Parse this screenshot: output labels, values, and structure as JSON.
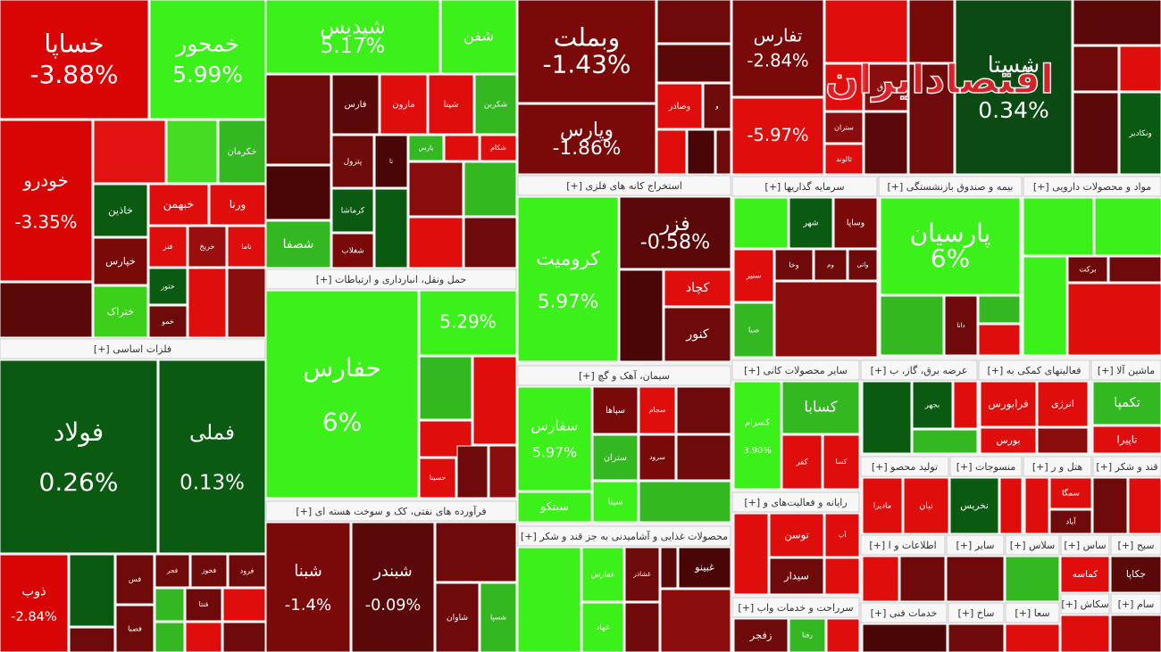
{
  "watermark": "اقتصادایران",
  "chart_data": {
    "type": "treemap",
    "groups": [
      {
        "labels": [
          "خساپا",
          "خمحور",
          "خودرو",
          null,
          "خکرمان",
          null,
          "خاذین",
          "خبهمن",
          "ورنا",
          "خپارس",
          "فنر",
          "خریخ",
          null,
          "ختراک",
          "ختور",
          "خمو",
          "ناما",
          null,
          null
        ],
        "values": [
          -3.88,
          5.99,
          -3.35,
          null,
          null,
          null,
          null,
          null,
          null,
          null,
          null,
          null,
          null,
          null,
          null,
          null,
          null,
          null,
          null
        ],
        "value_labels": [
          "-3.88%",
          "5.99%",
          "-3.35%",
          null,
          null,
          null,
          null,
          null,
          null,
          null,
          null,
          null,
          null,
          null,
          null,
          null,
          null,
          null,
          null
        ],
        "colors": [
          "#d90505",
          "#3cf01a",
          "#d90505",
          "#e01212",
          "#33b822",
          "#44dd22",
          "#0b5a12",
          "#e00d0d",
          "#e00d0d",
          "#7a0a0a",
          "#e00d0d",
          "#9a0e0e",
          "#5a0808",
          "#3cd01a",
          "#0b5a12",
          "#6e0a0a",
          "#e00d0d",
          "#e00d0d",
          "#8a0c0c"
        ]
      },
      {
        "labels": [
          "شپدیس",
          "شفن",
          null,
          null,
          "شصفا",
          "فارس",
          "مارون",
          "شپنا",
          "شکربن",
          "پترول",
          "تا",
          "پارس",
          null,
          "شکام",
          "کرماشا",
          "شغلاب",
          null,
          null,
          null,
          null,
          null
        ],
        "values": [
          5.17,
          null,
          null,
          null,
          null,
          null,
          null,
          null,
          null,
          null,
          null,
          null,
          null,
          null,
          null,
          null,
          null,
          null,
          null,
          null,
          null
        ],
        "value_labels": [
          "5.17%",
          null,
          null,
          null,
          null,
          null,
          null,
          null,
          null,
          null,
          null,
          null,
          null,
          null,
          null,
          null,
          null,
          null,
          null,
          null,
          null
        ],
        "colors": [
          "#3cf01a",
          "#3cf01a",
          "#6e0a0a",
          "#4a0606",
          "#33b822",
          "#5a0808",
          "#e00d0d",
          "#e00d0d",
          "#33b822",
          "#6e0a0a",
          "#4a0606",
          "#33b822",
          "#e00d0d",
          "#e00d0d",
          "#0b5a12",
          "#7a0a0a",
          "#0b5a12",
          "#8a0c0c",
          "#33b822",
          "#e00d0d",
          "#6e0a0a"
        ]
      },
      {
        "title": "حمل ونقل، انبارداری و ارتباطات [+]",
        "labels": [
          "حفارس",
          null,
          null,
          null,
          null,
          "حسینا",
          null,
          null
        ],
        "values": [
          6,
          5.29,
          null,
          null,
          null,
          null,
          null,
          null
        ],
        "value_labels": [
          "6%",
          "5.29%",
          null,
          null,
          null,
          null,
          null,
          null
        ],
        "colors": [
          "#3cf01a",
          "#3cf01a",
          "#33b822",
          "#e00d0d",
          "#e00d0d",
          "#e00d0d",
          "#6e0a0a",
          "#8a0c0c"
        ]
      },
      {
        "title": "فرآورده های نفتی، کک و سوخت هسته ای [+]",
        "labels": [
          "شبنا",
          "شبندر",
          null,
          "شاوان",
          "شسپا"
        ],
        "values": [
          -1.4,
          -0.09,
          null,
          null,
          null
        ],
        "value_labels": [
          "-1.4%",
          "-0.09%",
          null,
          null,
          null
        ],
        "colors": [
          "#7a0a0a",
          "#5a0808",
          "#6e0a0a",
          "#6e0a0a",
          "#33b822"
        ]
      },
      {
        "labels": [
          "وبملت",
          "وپارس",
          null,
          null,
          "وصادر",
          "و",
          null,
          null,
          null
        ],
        "values": [
          -1.43,
          -1.86,
          null,
          null,
          null,
          null,
          null,
          null,
          null
        ],
        "value_labels": [
          "-1.43%",
          "-1.86%",
          null,
          null,
          null,
          null,
          null,
          null,
          null
        ],
        "colors": [
          "#7a0a0a",
          "#7a0a0a",
          "#6e0a0a",
          "#5a0808",
          "#e00d0d",
          "#6e0a0a",
          "#e00d0d",
          "#4a0606",
          "#6e0a0a"
        ]
      },
      {
        "labels": [
          "تفارس",
          null,
          null,
          null,
          null,
          "شرق",
          "ستران",
          "ثالوند",
          null,
          null
        ],
        "values": [
          -2.84,
          null,
          -5.97,
          null,
          null,
          null,
          null,
          null,
          null,
          null
        ],
        "value_labels": [
          "-2.84%",
          null,
          "-5.97%",
          null,
          null,
          null,
          null,
          null,
          null,
          null
        ],
        "colors": [
          "#7a0a0a",
          "#e00d0d",
          "#e00d0d",
          "#7a0a0a",
          "#e00d0d",
          "#8a0c0c",
          "#8a0c0c",
          "#e00d0d",
          "#5a0808",
          "#6e0a0a"
        ]
      },
      {
        "labels": [
          "شستا",
          null,
          null,
          null,
          null,
          "ونکادیر"
        ],
        "values": [
          0.34,
          null,
          null,
          null,
          null,
          null
        ],
        "value_labels": [
          "0.34%",
          null,
          null,
          null,
          null,
          null
        ],
        "colors": [
          "#0b4a12",
          "#5a0808",
          "#6e0a0a",
          "#e00d0d",
          "#5a0808",
          "#0b5a12"
        ]
      },
      {
        "title": "استخراج کانه های فلزی [+]",
        "labels": [
          "کرومیت",
          "فزر",
          null,
          "کچاد",
          "کنور"
        ],
        "values": [
          5.97,
          -0.58,
          null,
          null,
          null
        ],
        "value_labels": [
          "5.97%",
          "-0.58%",
          null,
          null,
          null
        ],
        "colors": [
          "#3cf01a",
          "#5a0808",
          "#4a0606",
          "#e00d0d",
          "#6e0a0a"
        ]
      },
      {
        "title": "سیمان، آهک و گچ [+]",
        "labels": [
          "سفارس",
          "سپاها",
          "سجام",
          null,
          "ستران",
          "سرود",
          null,
          "سینا",
          "سیتکو",
          null
        ],
        "values": [
          5.97,
          null,
          null,
          null,
          null,
          null,
          null,
          null,
          null,
          null
        ],
        "value_labels": [
          "5.97%",
          null,
          null,
          null,
          null,
          null,
          null,
          null,
          null,
          null
        ],
        "colors": [
          "#3cf01a",
          "#7a0a0a",
          "#e00d0d",
          "#6e0a0a",
          "#33b822",
          "#7a0a0a",
          "#6e0a0a",
          "#3cf01a",
          "#3cf01a",
          "#33b822"
        ]
      },
      {
        "title": "محصولات غذایی و آشامیدنی به جز قند و شکر [+]",
        "labels": [
          null,
          "غفارس",
          "غشاذر",
          null,
          "غبینو",
          "غهاد",
          null,
          null
        ],
        "values": [
          null,
          null,
          null,
          null,
          null,
          null,
          null,
          null
        ],
        "value_labels": [
          null,
          null,
          null,
          null,
          null,
          null,
          null,
          null
        ],
        "colors": [
          "#3cf01a",
          "#3cf01a",
          "#6e0a0a",
          "#5a0808",
          "#4a0606",
          "#3cf01a",
          "#6e0a0a",
          "#8a0c0c"
        ]
      },
      {
        "title": "سرمایه گذاریها [+]",
        "labels": [
          null,
          "شهر",
          "وساپا",
          "وخا",
          "وم",
          "واتی",
          "سنیر",
          "صبا",
          null
        ],
        "values": [
          null,
          null,
          null,
          null,
          null,
          null,
          null,
          null,
          null
        ],
        "value_labels": [
          null,
          null,
          null,
          null,
          null,
          null,
          null,
          null,
          null
        ],
        "colors": [
          "#3cf01a",
          "#0b5a12",
          "#7a0a0a",
          "#6e0a0a",
          "#6e0a0a",
          "#6e0a0a",
          "#e00d0d",
          "#33b822",
          "#8a0c0c"
        ]
      },
      {
        "title": "بیمه و صندوق بازنشستگی [+]",
        "labels": [
          "پارسیان",
          null,
          "دانا",
          null,
          null
        ],
        "values": [
          6,
          null,
          null,
          null,
          null
        ],
        "value_labels": [
          "6%",
          null,
          null,
          null,
          null
        ],
        "colors": [
          "#3cf01a",
          "#33b822",
          "#6e0a0a",
          "#33b822",
          "#e00d0d"
        ]
      },
      {
        "title": "مواد و محصولات دارویی [+]",
        "labels": [
          null,
          null,
          "برکت",
          null,
          null,
          null
        ],
        "values": [
          null,
          null,
          null,
          null,
          null,
          null
        ],
        "value_labels": [
          null,
          null,
          null,
          null,
          null,
          null
        ],
        "colors": [
          "#3cf01a",
          "#3cf01a",
          "#6e0a0a",
          "#6e0a0a",
          "#3cf01a",
          "#e00d0d"
        ]
      },
      {
        "title": "سایر محصولات کانی [+]",
        "labels": [
          "کسرام",
          "کسابا",
          "کفر",
          "کسا"
        ],
        "values": [
          3.9,
          null,
          null,
          null
        ],
        "value_labels": [
          "3.90%",
          null,
          null,
          null
        ],
        "colors": [
          "#3cf01a",
          "#33b822",
          "#e00d0d",
          "#e00d0d"
        ]
      },
      {
        "title": "عرضه برق، گاز، ب [+]",
        "labels": [
          null,
          "بجهر",
          null,
          null
        ],
        "values": [
          null,
          null,
          null,
          null
        ],
        "value_labels": [
          null,
          null,
          null,
          null
        ],
        "colors": [
          "#0b5a12",
          "#0b5a12",
          "#e00d0d",
          "#33b822"
        ]
      },
      {
        "title": "فعالیتهای کمکی به [+]",
        "labels": [
          "فرابورس",
          "انرژی",
          "بورس",
          null
        ],
        "values": [
          null,
          null,
          null,
          null
        ],
        "value_labels": [
          null,
          null,
          null,
          null
        ],
        "colors": [
          "#e00d0d",
          "#e00d0d",
          "#e00d0d",
          "#8a0c0c"
        ]
      },
      {
        "title": "ماشین آلا [+]",
        "labels": [
          "تکمپا",
          "تاپیرا"
        ],
        "values": [
          null,
          null
        ],
        "value_labels": [
          null,
          null
        ],
        "colors": [
          "#33b822",
          "#e00d0d"
        ]
      },
      {
        "title": "تولید محصو [+]",
        "labels": [
          "مادیرا",
          "نیان"
        ],
        "values": [
          null,
          null
        ],
        "value_labels": [
          null,
          null
        ],
        "colors": [
          "#e00d0d",
          "#e00d0d"
        ]
      },
      {
        "title": "منسوجات [+]",
        "labels": [
          "نخریس",
          null
        ],
        "values": [
          null,
          null
        ],
        "value_labels": [
          null,
          null
        ],
        "colors": [
          "#0b5a12",
          "#e00d0d"
        ]
      },
      {
        "title": "هتل و ر [+]",
        "labels": [
          null,
          "سمگا",
          "آباد"
        ],
        "values": [
          null,
          null,
          null
        ],
        "value_labels": [
          null,
          null,
          null
        ],
        "colors": [
          "#e00d0d",
          "#e00d0d",
          "#6e0a0a"
        ]
      },
      {
        "title": "قند و شکر [+]",
        "labels": [
          null,
          null
        ],
        "values": [
          null,
          null
        ],
        "value_labels": [
          null,
          null
        ],
        "colors": [
          "#6e0a0a",
          "#e00d0d"
        ]
      },
      {
        "title": "رایانه و فعالیت‌های و [+]",
        "labels": [
          null,
          "توسن",
          "آپ",
          "سیدار",
          null
        ],
        "values": [
          null,
          null,
          null,
          null,
          null
        ],
        "value_labels": [
          null,
          null,
          null,
          null,
          null
        ],
        "colors": [
          "#e00d0d",
          "#e00d0d",
          "#e00d0d",
          "#6e0a0a",
          "#e00d0d"
        ]
      },
      {
        "title": "اطلاعات و ا [+]",
        "labels": [
          null,
          null
        ],
        "values": [
          null,
          null
        ],
        "value_labels": [
          null,
          null
        ],
        "colors": [
          "#e00d0d",
          "#6e0a0a"
        ]
      },
      {
        "title": "سایر [+]",
        "labels": [
          null
        ],
        "values": [
          null
        ],
        "value_labels": [
          null
        ],
        "colors": [
          "#6e0a0a"
        ]
      },
      {
        "title": "سلاس [+]",
        "labels": [
          null
        ],
        "values": [
          null
        ],
        "value_labels": [
          null
        ],
        "colors": [
          "#33b822"
        ]
      },
      {
        "title": "ساس [+]",
        "labels": [
          "کماسه"
        ],
        "values": [
          null
        ],
        "value_labels": [
          null
        ],
        "colors": [
          "#e00d0d"
        ]
      },
      {
        "title": "سیح [+]",
        "labels": [
          "جکاپا"
        ],
        "values": [
          null
        ],
        "value_labels": [
          null
        ],
        "colors": [
          "#5a0808"
        ]
      },
      {
        "title": "سرراحت و خدمات واب [+]",
        "labels": [
          "زفجر",
          "رفتا",
          null
        ],
        "values": [
          null,
          null,
          null
        ],
        "value_labels": [
          null,
          null,
          null
        ],
        "colors": [
          "#6e0a0a",
          "#33b822",
          "#e00d0d"
        ]
      },
      {
        "title": "خدمات فنی [+]",
        "labels": [
          null
        ],
        "values": [
          null
        ],
        "value_labels": [
          null
        ],
        "colors": [
          "#4a0606"
        ]
      },
      {
        "title": "ساخ [+]",
        "labels": [
          null
        ],
        "values": [
          null
        ],
        "value_labels": [
          null
        ],
        "colors": [
          "#6e0a0a"
        ]
      },
      {
        "title": "سعا [+]",
        "labels": [
          null
        ],
        "values": [
          null
        ],
        "value_labels": [
          null
        ],
        "colors": [
          "#e00d0d"
        ]
      },
      {
        "title": "سکاش [+]",
        "labels": [
          null
        ],
        "values": [
          null
        ],
        "value_labels": [
          null
        ],
        "colors": [
          "#e00d0d"
        ]
      },
      {
        "title": "سام [+]",
        "labels": [
          null
        ],
        "values": [
          null
        ],
        "value_labels": [
          null
        ],
        "colors": [
          "#6e0a0a"
        ]
      },
      {
        "title": "فلزات اساسی [+]",
        "labels": [
          "فولاد",
          "فملی",
          "ذوب",
          null,
          "فس",
          "فجر",
          "فخوز",
          "فرود",
          "فصبا",
          null,
          "فنتا",
          null,
          null,
          null,
          null,
          null
        ],
        "values": [
          0.26,
          0.13,
          -2.84,
          null,
          null,
          null,
          null,
          null,
          null,
          null,
          null,
          null,
          null,
          null,
          null,
          null
        ],
        "value_labels": [
          "0.26%",
          "0.13%",
          "-2.84%",
          null,
          null,
          null,
          null,
          null,
          null,
          null,
          null,
          null,
          null,
          null,
          null,
          null
        ],
        "colors": [
          "#0b5a12",
          "#0b5a12",
          "#d90505",
          "#0b5a12",
          "#6e0a0a",
          "#6e0a0a",
          "#6e0a0a",
          "#6e0a0a",
          "#6e0a0a",
          "#33b822",
          "#6e0a0a",
          "#e00d0d",
          "#33b822",
          "#e00d0d",
          "#6e0a0a",
          "#6e0a0a"
        ]
      }
    ]
  }
}
